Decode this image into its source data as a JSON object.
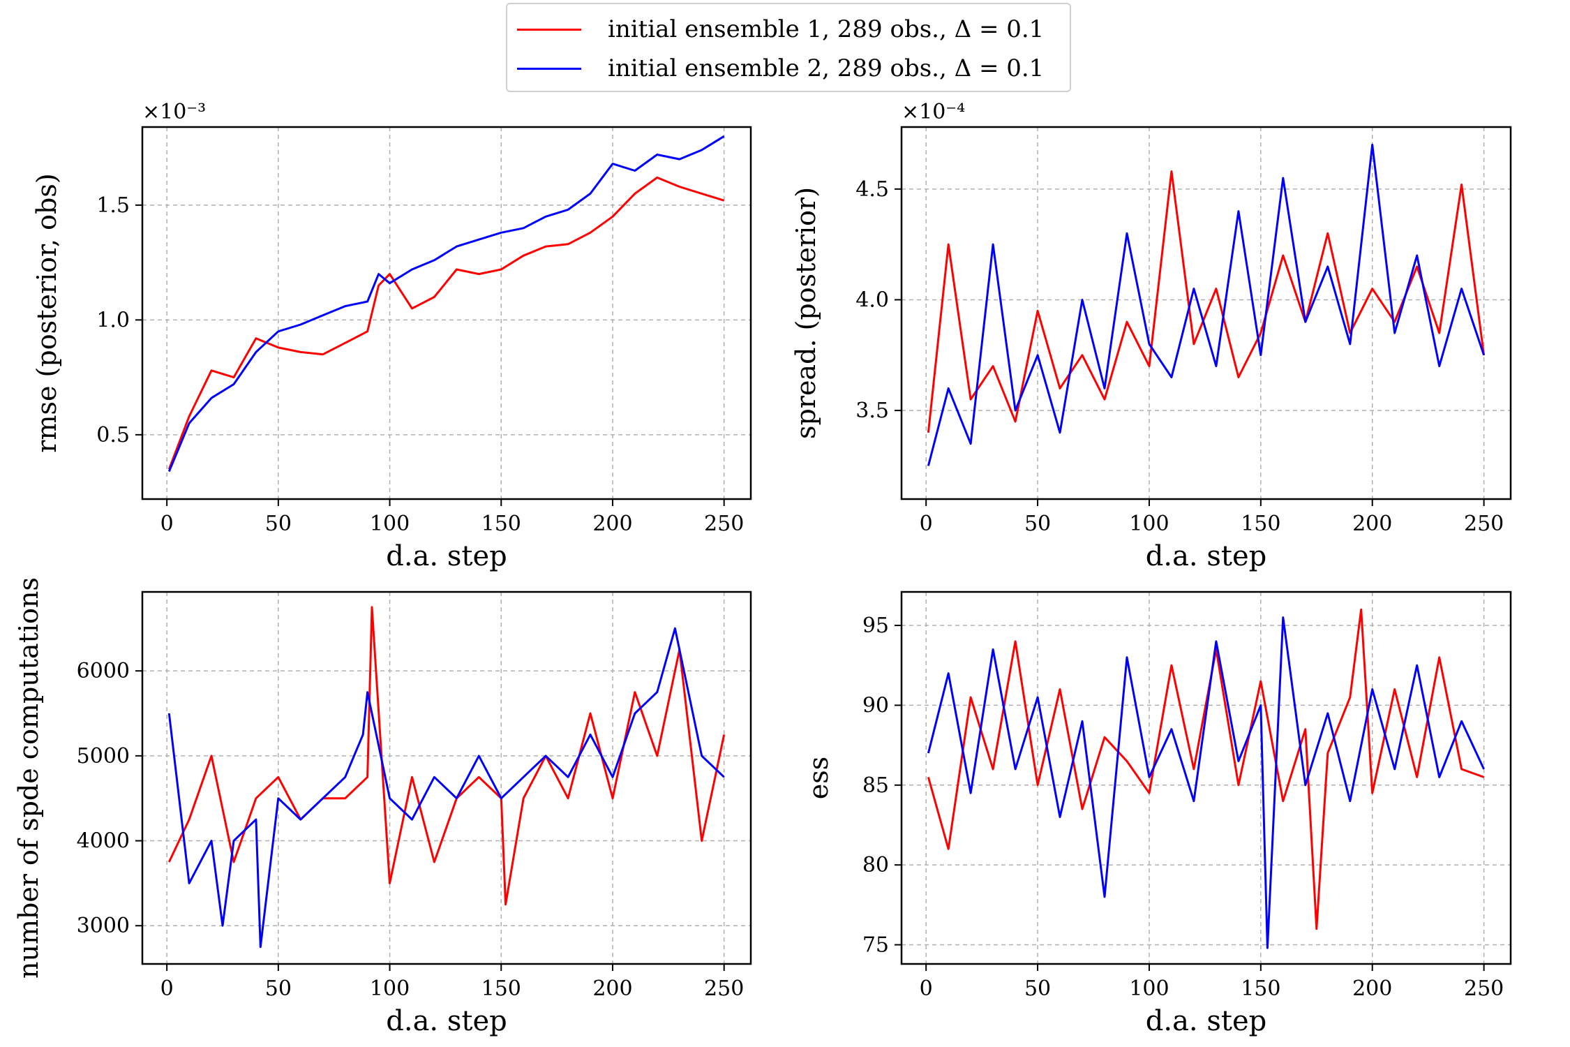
{
  "legend": {
    "entries": [
      {
        "label": "initial ensemble 1, 289 obs., Δ = 0.1",
        "color": "#ff0000"
      },
      {
        "label": "initial ensemble 2, 289 obs., Δ = 0.1",
        "color": "#0000ff"
      }
    ]
  },
  "chart_data": [
    {
      "type": "line",
      "id": "rmse",
      "title": "",
      "xlabel": "d.a. step",
      "ylabel": "rmse (posterior, obs)",
      "multiplier_label": "×10⁻³",
      "xlim": [
        -11,
        262
      ],
      "ylim": [
        0.22,
        1.84
      ],
      "xticks": [
        0,
        50,
        100,
        150,
        200,
        250
      ],
      "yticks": [
        0.5,
        1.0,
        1.5
      ],
      "ytick_labels": [
        "0.5",
        "1.0",
        "1.5"
      ],
      "grid": true,
      "series": [
        {
          "name": "initial ensemble 1, 289 obs., Δ = 0.1",
          "color": "#ff0000",
          "x": [
            1,
            10,
            20,
            30,
            40,
            50,
            60,
            70,
            80,
            90,
            95,
            100,
            110,
            120,
            130,
            140,
            150,
            160,
            170,
            180,
            190,
            200,
            210,
            220,
            230,
            240,
            250
          ],
          "y": [
            0.35,
            0.58,
            0.78,
            0.75,
            0.92,
            0.88,
            0.86,
            0.85,
            0.9,
            0.95,
            1.15,
            1.2,
            1.05,
            1.1,
            1.22,
            1.2,
            1.22,
            1.28,
            1.32,
            1.33,
            1.38,
            1.45,
            1.55,
            1.62,
            1.58,
            1.55,
            1.52
          ]
        },
        {
          "name": "initial ensemble 2, 289 obs., Δ = 0.1",
          "color": "#0000ff",
          "x": [
            1,
            10,
            20,
            30,
            40,
            50,
            60,
            70,
            80,
            90,
            95,
            100,
            110,
            120,
            130,
            140,
            150,
            160,
            170,
            180,
            190,
            200,
            210,
            220,
            230,
            240,
            250
          ],
          "y": [
            0.34,
            0.55,
            0.66,
            0.72,
            0.86,
            0.95,
            0.98,
            1.02,
            1.06,
            1.08,
            1.2,
            1.16,
            1.22,
            1.26,
            1.32,
            1.35,
            1.38,
            1.4,
            1.45,
            1.48,
            1.55,
            1.68,
            1.65,
            1.72,
            1.7,
            1.74,
            1.8
          ]
        }
      ]
    },
    {
      "type": "line",
      "id": "spread",
      "title": "",
      "xlabel": "d.a. step",
      "ylabel": "spread. (posterior)",
      "multiplier_label": "×10⁻⁴",
      "xlim": [
        -11,
        262
      ],
      "ylim": [
        3.1,
        4.78
      ],
      "xticks": [
        0,
        50,
        100,
        150,
        200,
        250
      ],
      "yticks": [
        3.5,
        4.0,
        4.5
      ],
      "ytick_labels": [
        "3.5",
        "4.0",
        "4.5"
      ],
      "grid": true,
      "series": [
        {
          "name": "initial ensemble 1, 289 obs., Δ = 0.1",
          "color": "#ff0000",
          "x": [
            1,
            10,
            20,
            30,
            40,
            50,
            60,
            70,
            80,
            90,
            100,
            110,
            120,
            130,
            140,
            150,
            160,
            170,
            180,
            190,
            200,
            210,
            220,
            230,
            240,
            250
          ],
          "y": [
            3.4,
            4.25,
            3.55,
            3.7,
            3.45,
            3.95,
            3.6,
            3.75,
            3.55,
            3.9,
            3.7,
            4.58,
            3.8,
            4.05,
            3.65,
            3.85,
            4.2,
            3.9,
            4.3,
            3.85,
            4.05,
            3.9,
            4.15,
            3.85,
            4.52,
            3.75
          ]
        },
        {
          "name": "initial ensemble 2, 289 obs., Δ = 0.1",
          "color": "#0000ff",
          "x": [
            1,
            10,
            20,
            30,
            40,
            50,
            60,
            70,
            80,
            90,
            100,
            110,
            120,
            130,
            140,
            150,
            160,
            170,
            180,
            190,
            200,
            210,
            220,
            230,
            240,
            250
          ],
          "y": [
            3.25,
            3.6,
            3.35,
            4.25,
            3.5,
            3.75,
            3.4,
            4.0,
            3.6,
            4.3,
            3.8,
            3.65,
            4.05,
            3.7,
            4.4,
            3.75,
            4.55,
            3.9,
            4.15,
            3.8,
            4.7,
            3.85,
            4.2,
            3.7,
            4.05,
            3.75
          ]
        }
      ]
    },
    {
      "type": "line",
      "id": "spde",
      "title": "",
      "xlabel": "d.a. step",
      "ylabel": "number of spde computations",
      "xlim": [
        -11,
        262
      ],
      "ylim": [
        2550,
        6930
      ],
      "xticks": [
        0,
        50,
        100,
        150,
        200,
        250
      ],
      "yticks": [
        3000,
        4000,
        5000,
        6000
      ],
      "ytick_labels": [
        "3000",
        "4000",
        "5000",
        "6000"
      ],
      "grid": true,
      "series": [
        {
          "name": "initial ensemble 1, 289 obs., Δ = 0.1",
          "color": "#ff0000",
          "x": [
            1,
            10,
            20,
            30,
            40,
            50,
            60,
            70,
            80,
            90,
            92,
            100,
            110,
            120,
            130,
            140,
            150,
            152,
            160,
            170,
            180,
            190,
            200,
            210,
            220,
            230,
            240,
            250
          ],
          "y": [
            3750,
            4250,
            5000,
            3750,
            4500,
            4750,
            4250,
            4500,
            4500,
            4750,
            6750,
            3500,
            4750,
            3750,
            4500,
            4750,
            4500,
            3250,
            4500,
            5000,
            4500,
            5500,
            4500,
            5750,
            5000,
            6250,
            4000,
            5250
          ]
        },
        {
          "name": "initial ensemble 2, 289 obs., Δ = 0.1",
          "color": "#0000ff",
          "x": [
            1,
            10,
            20,
            25,
            30,
            40,
            42,
            50,
            60,
            70,
            80,
            88,
            90,
            100,
            110,
            120,
            130,
            140,
            150,
            160,
            170,
            180,
            190,
            200,
            210,
            220,
            228,
            240,
            250
          ],
          "y": [
            5500,
            3500,
            4000,
            3000,
            4000,
            4250,
            2750,
            4500,
            4250,
            4500,
            4750,
            5250,
            5750,
            4500,
            4250,
            4750,
            4500,
            5000,
            4500,
            4750,
            5000,
            4750,
            5250,
            4750,
            5500,
            5750,
            6500,
            5000,
            4750
          ]
        }
      ]
    },
    {
      "type": "line",
      "id": "ess",
      "title": "",
      "xlabel": "d.a. step",
      "ylabel": "ess",
      "xlim": [
        -11,
        262
      ],
      "ylim": [
        73.8,
        97.1
      ],
      "xticks": [
        0,
        50,
        100,
        150,
        200,
        250
      ],
      "yticks": [
        75,
        80,
        85,
        90,
        95
      ],
      "ytick_labels": [
        "75",
        "80",
        "85",
        "90",
        "95"
      ],
      "grid": true,
      "series": [
        {
          "name": "initial ensemble 1, 289 obs., Δ = 0.1",
          "color": "#ff0000",
          "x": [
            1,
            10,
            20,
            30,
            40,
            50,
            60,
            70,
            80,
            90,
            100,
            110,
            120,
            130,
            140,
            150,
            160,
            170,
            175,
            180,
            190,
            195,
            200,
            210,
            220,
            230,
            240,
            250
          ],
          "y": [
            85.5,
            81.0,
            90.5,
            86.0,
            94.0,
            85.0,
            91.0,
            83.5,
            88.0,
            86.5,
            84.5,
            92.5,
            86.0,
            93.5,
            85.0,
            91.5,
            84.0,
            88.5,
            76.0,
            87.0,
            90.5,
            96.0,
            84.5,
            91.0,
            85.5,
            93.0,
            86.0,
            85.5
          ]
        },
        {
          "name": "initial ensemble 2, 289 obs., Δ = 0.1",
          "color": "#0000ff",
          "x": [
            1,
            10,
            20,
            30,
            40,
            50,
            60,
            70,
            80,
            90,
            100,
            110,
            120,
            130,
            140,
            150,
            153,
            160,
            170,
            180,
            190,
            200,
            210,
            220,
            230,
            240,
            250
          ],
          "y": [
            87.0,
            92.0,
            84.5,
            93.5,
            86.0,
            90.5,
            83.0,
            89.0,
            78.0,
            93.0,
            85.5,
            88.5,
            84.0,
            94.0,
            86.5,
            90.0,
            74.8,
            95.5,
            85.0,
            89.5,
            84.0,
            91.0,
            86.0,
            92.5,
            85.5,
            89.0,
            86.0
          ]
        }
      ]
    }
  ]
}
